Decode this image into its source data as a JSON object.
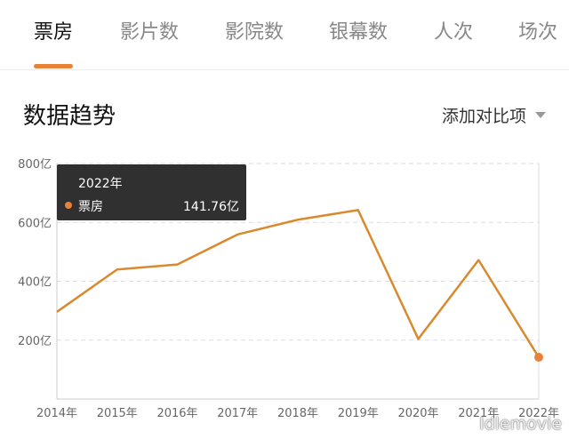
{
  "tabs": [
    {
      "label": "票房",
      "active": true
    },
    {
      "label": "影片数",
      "active": false
    },
    {
      "label": "影院数",
      "active": false
    },
    {
      "label": "银幕数",
      "active": false
    },
    {
      "label": "人次",
      "active": false
    },
    {
      "label": "场次",
      "active": false
    }
  ],
  "section": {
    "title": "数据趋势",
    "compare_label": "添加对比项"
  },
  "tooltip": {
    "year": "2022年",
    "series_name": "票房",
    "value": "141.76亿"
  },
  "watermark": "Idlemovie",
  "colors": {
    "accent": "#e8823a",
    "line": "#d98a2f",
    "grid": "#dddddd"
  },
  "chart_data": {
    "type": "line",
    "categories": [
      "2014年",
      "2015年",
      "2016年",
      "2017年",
      "2018年",
      "2019年",
      "2020年",
      "2021年",
      "2022年"
    ],
    "series": [
      {
        "name": "票房",
        "values": [
          296,
          440,
          457,
          559,
          609,
          642,
          204,
          472,
          141.76
        ]
      }
    ],
    "yticks": [
      "200亿",
      "400亿",
      "600亿",
      "800亿"
    ],
    "ylim": [
      0,
      800
    ],
    "grid": true,
    "highlight_index": 8
  }
}
